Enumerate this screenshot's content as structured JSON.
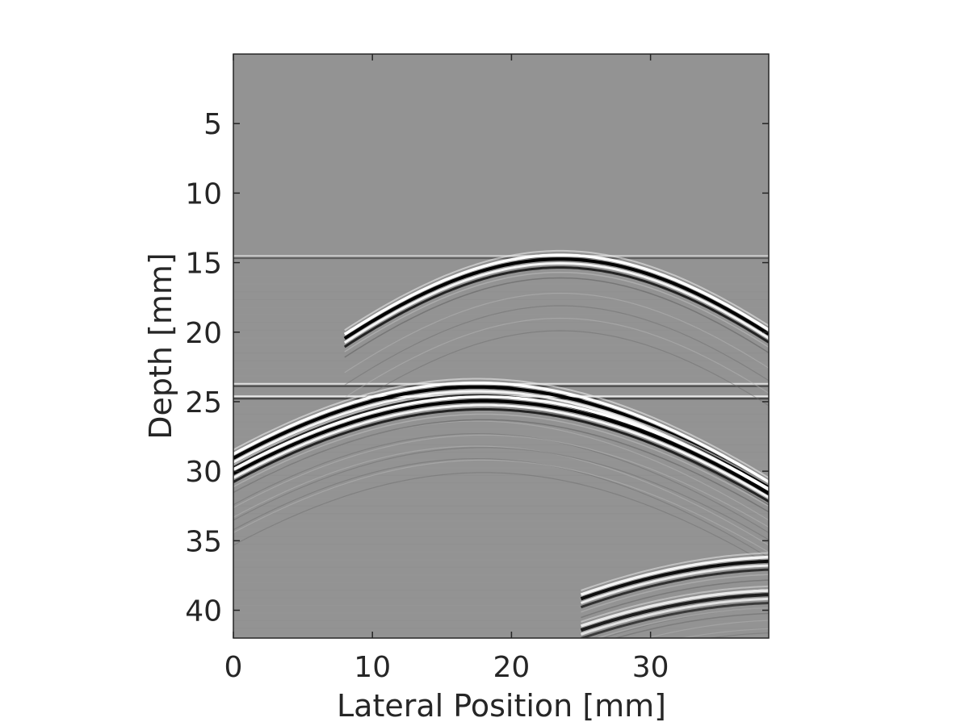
{
  "chart_data": {
    "type": "heatmap",
    "colormap": "gray",
    "background_gray": "#939393",
    "xlabel": "Lateral Position [mm]",
    "ylabel": "Depth [mm]",
    "xlim": [
      0,
      38.5
    ],
    "ylim": [
      0,
      42
    ],
    "y_reversed": true,
    "x_ticks": [
      "0",
      "10",
      "20",
      "30"
    ],
    "y_ticks": [
      "5",
      "10",
      "15",
      "20",
      "25",
      "30",
      "35",
      "40"
    ],
    "horizontal_reflectors": [
      {
        "depth": 14.6,
        "strength": 0.5
      },
      {
        "depth": 23.8,
        "strength": 0.7
      },
      {
        "depth": 24.7,
        "strength": 0.8
      }
    ],
    "hyperbolic_reflections": [
      {
        "apex_x": 23.5,
        "apex_depth": 14.7,
        "x_range": [
          8,
          38.5
        ],
        "strength": 1.0
      },
      {
        "apex_x": 17.5,
        "apex_depth": 23.9,
        "x_range": [
          0,
          38.5
        ],
        "strength": 1.0
      },
      {
        "apex_x": 18.0,
        "apex_depth": 24.9,
        "x_range": [
          0,
          38.5
        ],
        "strength": 1.0
      },
      {
        "apex_x": 40.0,
        "apex_depth": 36.4,
        "x_range": [
          25,
          38.5
        ],
        "strength": 0.9
      },
      {
        "apex_x": 40.0,
        "apex_depth": 38.8,
        "x_range": [
          25,
          38.5
        ],
        "strength": 0.8
      }
    ]
  }
}
